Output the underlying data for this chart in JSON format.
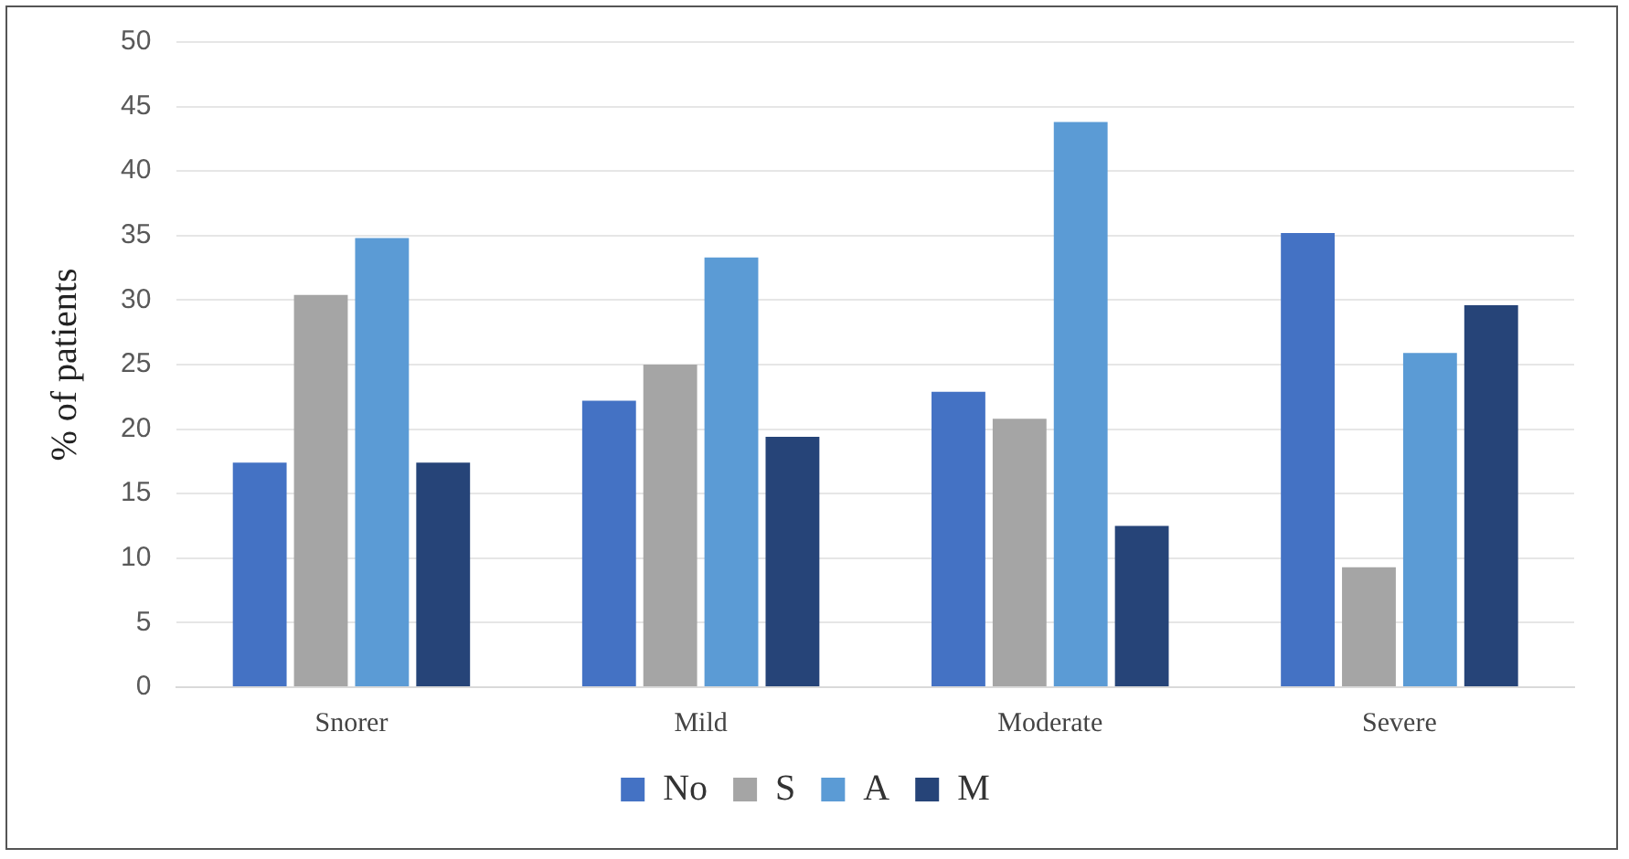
{
  "chart_data": {
    "type": "bar",
    "ylabel": "% of patients",
    "categories": [
      "Snorer",
      "Mild",
      "Moderate",
      "Severe"
    ],
    "series": [
      {
        "name": "No",
        "color": "#4472c4",
        "values": [
          17.4,
          22.2,
          22.9,
          35.2
        ]
      },
      {
        "name": "S",
        "color": "#a5a5a5",
        "values": [
          30.4,
          25.0,
          20.8,
          9.3
        ]
      },
      {
        "name": "A",
        "color": "#5b9bd5",
        "values": [
          34.8,
          33.3,
          43.8,
          25.9
        ]
      },
      {
        "name": "M",
        "color": "#264478",
        "values": [
          17.4,
          19.4,
          12.5,
          29.6
        ]
      }
    ],
    "ylim": [
      0,
      50
    ],
    "yticks": [
      0,
      5,
      10,
      15,
      20,
      25,
      30,
      35,
      40,
      45,
      50
    ],
    "grid": "y",
    "legend": "bottom"
  }
}
